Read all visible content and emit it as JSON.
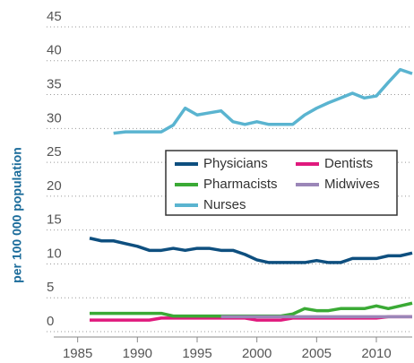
{
  "chart_data": {
    "type": "line",
    "y_label": "per 100 000 population",
    "x": [
      1986,
      1987,
      1988,
      1989,
      1990,
      1991,
      1992,
      1993,
      1994,
      1995,
      1996,
      1997,
      1998,
      1999,
      2000,
      2001,
      2002,
      2003,
      2004,
      2005,
      2006,
      2007,
      2008,
      2009,
      2010,
      2011,
      2012,
      2013
    ],
    "series": [
      {
        "name": "Physicians",
        "color": "#0e4f7f",
        "values": [
          13.8,
          13.4,
          13.4,
          13.0,
          12.6,
          12.0,
          12.0,
          12.3,
          12.0,
          12.3,
          12.3,
          12.0,
          12.0,
          11.4,
          10.6,
          10.2,
          10.2,
          10.2,
          10.2,
          10.5,
          10.2,
          10.2,
          10.8,
          10.8,
          10.8,
          11.2,
          11.2,
          11.6
        ]
      },
      {
        "name": "Dentists",
        "color": "#e0197d",
        "values": [
          1.7,
          1.7,
          1.7,
          1.7,
          1.7,
          1.7,
          2.0,
          2.0,
          2.0,
          2.0,
          2.0,
          2.0,
          2.0,
          2.0,
          1.7,
          1.7,
          1.7,
          2.0,
          2.0,
          2.0,
          2.0,
          2.0,
          2.0,
          2.0,
          2.0,
          2.2,
          2.2,
          2.2
        ]
      },
      {
        "name": "Pharmacists",
        "color": "#3aaa35",
        "values": [
          2.7,
          2.7,
          2.7,
          2.7,
          2.7,
          2.7,
          2.7,
          2.3,
          2.3,
          2.3,
          2.3,
          2.3,
          2.3,
          2.3,
          2.3,
          2.3,
          2.3,
          2.6,
          3.4,
          3.1,
          3.1,
          3.4,
          3.4,
          3.4,
          3.8,
          3.4,
          3.8,
          4.2
        ]
      },
      {
        "name": "Midwives",
        "color": "#9b86b8",
        "values": [
          null,
          null,
          null,
          null,
          null,
          null,
          null,
          null,
          null,
          null,
          null,
          2.2,
          2.2,
          2.2,
          2.2,
          2.2,
          2.2,
          2.2,
          2.2,
          2.2,
          2.2,
          2.2,
          2.2,
          2.2,
          2.2,
          2.2,
          2.2,
          2.2
        ]
      },
      {
        "name": "Nurses",
        "color": "#5ab4d0",
        "values": [
          null,
          null,
          29.3,
          29.5,
          29.5,
          29.5,
          29.5,
          30.5,
          33.0,
          32.0,
          32.3,
          32.6,
          31.0,
          30.6,
          31.0,
          30.6,
          30.6,
          30.6,
          32.0,
          33.0,
          33.8,
          34.5,
          35.2,
          34.5,
          34.8,
          36.8,
          38.7,
          38.1
        ]
      }
    ],
    "xlim": [
      1983,
      2013
    ],
    "ylim": [
      0,
      45
    ],
    "xticks": [
      1985,
      1990,
      1995,
      2000,
      2005,
      2010
    ],
    "yticks": [
      0,
      5,
      10,
      15,
      20,
      25,
      30,
      35,
      40,
      45
    ],
    "grid": true
  }
}
